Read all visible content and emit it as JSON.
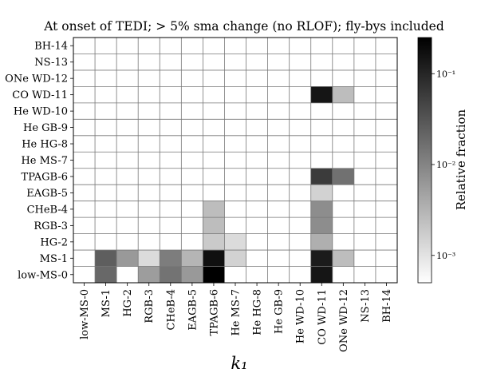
{
  "chart_data": {
    "type": "heatmap",
    "title": "At onset of TEDI; > 5% sma change (no RLOF); fly-bys included",
    "xlabel": "k₁",
    "ylabel": "",
    "x_categories": [
      "low-MS-0",
      "MS-1",
      "HG-2",
      "RGB-3",
      "CHeB-4",
      "EAGB-5",
      "TPAGB-6",
      "He MS-7",
      "He HG-8",
      "He GB-9",
      "He WD-10",
      "CO WD-11",
      "ONe WD-12",
      "NS-13",
      "BH-14"
    ],
    "y_categories": [
      "BH-14",
      "NS-13",
      "ONe WD-12",
      "CO WD-11",
      "He WD-10",
      "He GB-9",
      "He HG-8",
      "He MS-7",
      "TPAGB-6",
      "EAGB-5",
      "CHeB-4",
      "RGB-3",
      "HG-2",
      "MS-1",
      "low-MS-0"
    ],
    "colorbar": {
      "label": "Relative fraction",
      "scale": "log",
      "range": [
        0.0005,
        0.25
      ],
      "ticks": [
        {
          "value": 0.1,
          "label": "10⁻¹"
        },
        {
          "value": 0.01,
          "label": "10⁻²"
        },
        {
          "value": 0.001,
          "label": "10⁻³"
        }
      ]
    },
    "cells": [
      {
        "row": "CO WD-11",
        "col": "CO WD-11",
        "value": 0.15
      },
      {
        "row": "CO WD-11",
        "col": "ONe WD-12",
        "value": 0.0025
      },
      {
        "row": "TPAGB-6",
        "col": "CO WD-11",
        "value": 0.06
      },
      {
        "row": "TPAGB-6",
        "col": "ONe WD-12",
        "value": 0.016
      },
      {
        "row": "EAGB-5",
        "col": "CO WD-11",
        "value": 0.0015
      },
      {
        "row": "CHeB-4",
        "col": "TPAGB-6",
        "value": 0.0025
      },
      {
        "row": "CHeB-4",
        "col": "CO WD-11",
        "value": 0.008
      },
      {
        "row": "RGB-3",
        "col": "TPAGB-6",
        "value": 0.0025
      },
      {
        "row": "RGB-3",
        "col": "CO WD-11",
        "value": 0.008
      },
      {
        "row": "HG-2",
        "col": "TPAGB-6",
        "value": 0.0018
      },
      {
        "row": "HG-2",
        "col": "He MS-7",
        "value": 0.0012
      },
      {
        "row": "HG-2",
        "col": "CO WD-11",
        "value": 0.0035
      },
      {
        "row": "MS-1",
        "col": "MS-1",
        "value": 0.025
      },
      {
        "row": "MS-1",
        "col": "HG-2",
        "value": 0.006
      },
      {
        "row": "MS-1",
        "col": "RGB-3",
        "value": 0.0012
      },
      {
        "row": "MS-1",
        "col": "CHeB-4",
        "value": 0.012
      },
      {
        "row": "MS-1",
        "col": "EAGB-5",
        "value": 0.003
      },
      {
        "row": "MS-1",
        "col": "TPAGB-6",
        "value": 0.17
      },
      {
        "row": "MS-1",
        "col": "He MS-7",
        "value": 0.0015
      },
      {
        "row": "MS-1",
        "col": "CO WD-11",
        "value": 0.13
      },
      {
        "row": "MS-1",
        "col": "ONe WD-12",
        "value": 0.0025
      },
      {
        "row": "low-MS-0",
        "col": "MS-1",
        "value": 0.02
      },
      {
        "row": "low-MS-0",
        "col": "RGB-3",
        "value": 0.0055
      },
      {
        "row": "low-MS-0",
        "col": "CHeB-4",
        "value": 0.015
      },
      {
        "row": "low-MS-0",
        "col": "EAGB-5",
        "value": 0.006
      },
      {
        "row": "low-MS-0",
        "col": "TPAGB-6",
        "value": 0.25
      },
      {
        "row": "low-MS-0",
        "col": "CO WD-11",
        "value": 0.15
      }
    ]
  }
}
